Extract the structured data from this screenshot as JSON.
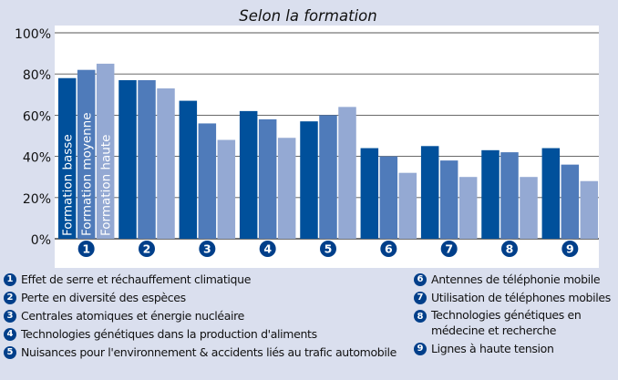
{
  "chart_data": {
    "type": "bar",
    "title": "Selon la formation",
    "xlabel": "",
    "ylabel": "",
    "ylim": [
      0,
      100
    ],
    "yticks": [
      "0%",
      "20%",
      "40%",
      "60%",
      "80%",
      "100%"
    ],
    "grid": true,
    "categories": [
      "1",
      "2",
      "3",
      "4",
      "5",
      "6",
      "7",
      "8",
      "9"
    ],
    "series": [
      {
        "name": "Formation basse",
        "color": "#00509b",
        "values": [
          78,
          77,
          67,
          62,
          57,
          44,
          45,
          43,
          44
        ]
      },
      {
        "name": "Formation moyenne",
        "color": "#4f7bba",
        "values": [
          82,
          77,
          56,
          58,
          60,
          40,
          38,
          42,
          36
        ]
      },
      {
        "name": "Formation haute",
        "color": "#94a9d3",
        "values": [
          85,
          73,
          48,
          49,
          64,
          32,
          30,
          30,
          28
        ]
      }
    ]
  },
  "legend_left": [
    {
      "num": "1",
      "text": "Effet de serre et réchauffement climatique"
    },
    {
      "num": "2",
      "text": "Perte en diversité des espèces"
    },
    {
      "num": "3",
      "text": "Centrales atomiques et énergie nucléaire"
    },
    {
      "num": "4",
      "text": "Technologies génétiques dans la production d'aliments"
    },
    {
      "num": "5",
      "text": "Nuisances pour l'environnement & accidents liés au trafic automobile"
    }
  ],
  "legend_right": [
    {
      "num": "6",
      "text": "Antennes de téléphonie mobile"
    },
    {
      "num": "7",
      "text": "Utilisation de téléphones mobiles"
    },
    {
      "num": "8",
      "text": "Technologies génétiques en médecine et recherche"
    },
    {
      "num": "9",
      "text": "Lignes à haute tension"
    }
  ],
  "colors": {
    "background": "#dadfee",
    "badge": "#003f8a",
    "plot_background": "#ffffff"
  }
}
